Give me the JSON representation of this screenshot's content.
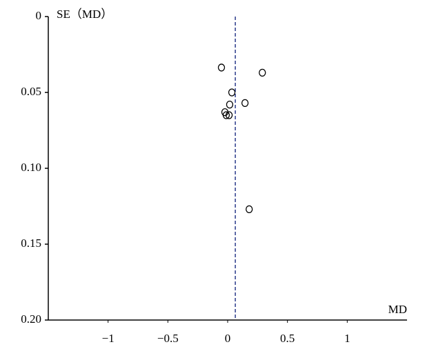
{
  "chart_data": {
    "type": "scatter",
    "x_label": "MD",
    "y_label": "SE（MD）",
    "x": [
      -0.052,
      0.29,
      0.035,
      0.145,
      0.017,
      -0.023,
      -0.012,
      0.012,
      0.18
    ],
    "values": [
      0.0336,
      0.037,
      0.05,
      0.057,
      0.058,
      0.063,
      0.065,
      0.065,
      0.127
    ],
    "xlim": [
      -1.5,
      1.5
    ],
    "ylim": [
      0,
      0.2
    ],
    "y_inverted": true,
    "xticks": [
      {
        "value": -1,
        "label": "−1"
      },
      {
        "value": -0.5,
        "label": "−0.5"
      },
      0,
      0.5,
      1
    ],
    "yticks": [
      0,
      0.05,
      {
        "value": 0.1,
        "label": "0.10"
      },
      0.15,
      {
        "value": 0.2,
        "label": "0.20"
      }
    ],
    "reference_x": 0.064,
    "reference_color": "#2a3a8a",
    "marker_color": "#000000"
  }
}
